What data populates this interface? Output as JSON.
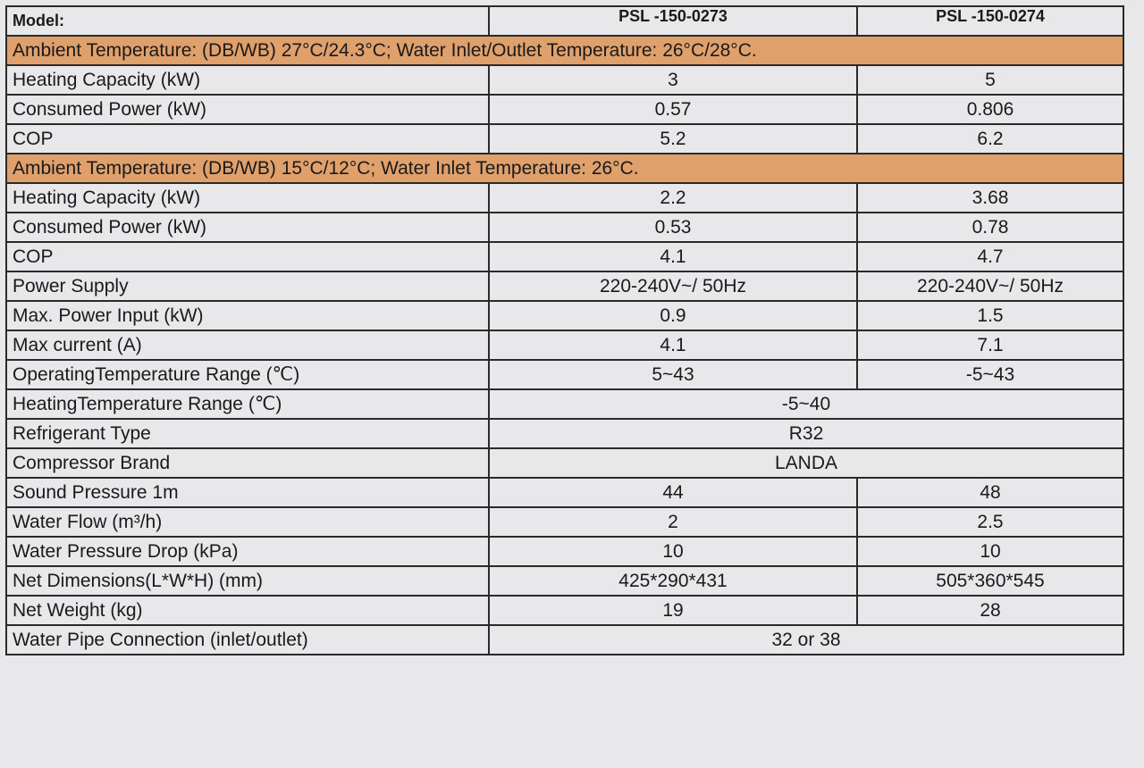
{
  "table": {
    "header": [
      "Model:",
      "PSL -150-0273",
      "PSL -150-0274"
    ],
    "rows": [
      {
        "section": "Ambient Temperature: (DB/WB) 27°C/24.3°C; Water Inlet/Outlet Temperature: 26°C/28°C."
      },
      {
        "label": "Heating Capacity (kW)",
        "values": [
          "3",
          "5"
        ]
      },
      {
        "label": "Consumed Power (kW)",
        "values": [
          "0.57",
          "0.806"
        ]
      },
      {
        "label": "COP",
        "values": [
          "5.2",
          "6.2"
        ]
      },
      {
        "section": "Ambient Temperature: (DB/WB) 15°C/12°C; Water Inlet Temperature: 26°C."
      },
      {
        "label": "Heating Capacity (kW)",
        "values": [
          "2.2",
          "3.68"
        ]
      },
      {
        "label": "Consumed Power (kW)",
        "values": [
          "0.53",
          "0.78"
        ]
      },
      {
        "label": "COP",
        "values": [
          "4.1",
          "4.7"
        ]
      },
      {
        "label": "Power Supply",
        "values": [
          "220-240V~/ 50Hz",
          "220-240V~/ 50Hz"
        ]
      },
      {
        "label": "Max. Power Input (kW)",
        "values": [
          "0.9",
          "1.5"
        ]
      },
      {
        "label": "Max current (A)",
        "values": [
          "4.1",
          "7.1"
        ]
      },
      {
        "label": "OperatingTemperature Range (℃)",
        "values": [
          "5~43",
          "-5~43"
        ]
      },
      {
        "label": "HeatingTemperature Range (℃)",
        "values": [
          "-5~40"
        ]
      },
      {
        "label": "Refrigerant Type",
        "values": [
          "R32"
        ]
      },
      {
        "label": "Compressor Brand",
        "values": [
          "LANDA"
        ]
      },
      {
        "label": "Sound Pressure 1m",
        "values": [
          "44",
          "48"
        ]
      },
      {
        "label": "Water Flow (m³/h)",
        "values": [
          "2",
          "2.5"
        ]
      },
      {
        "label": "Water Pressure Drop (kPa)",
        "values": [
          "10",
          "10"
        ]
      },
      {
        "label": "Net Dimensions(L*W*H) (mm)",
        "values": [
          "425*290*431",
          "505*360*545"
        ]
      },
      {
        "label": "Net Weight (kg)",
        "values": [
          "19",
          "28"
        ]
      },
      {
        "label": "Water Pipe Connection (inlet/outlet)",
        "values": [
          "32 or 38"
        ]
      }
    ]
  }
}
